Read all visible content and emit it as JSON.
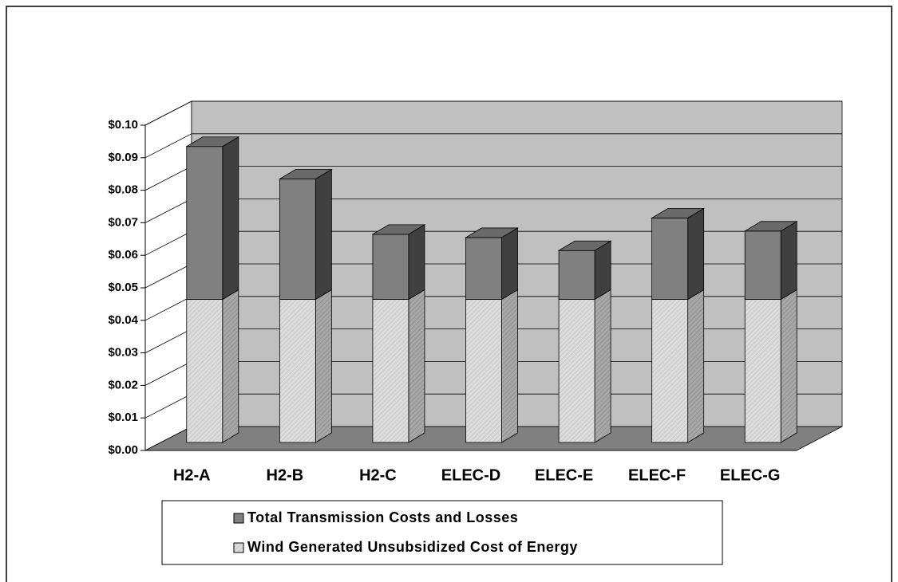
{
  "chart_data": {
    "type": "bar3d-stacked",
    "categories": [
      "H2-A",
      "H2-B",
      "H2-C",
      "ELEC-D",
      "ELEC-E",
      "ELEC-F",
      "ELEC-G"
    ],
    "series": [
      {
        "name": "Total Transmission Costs and Losses",
        "color": "#808080",
        "values": [
          0.047,
          0.037,
          0.02,
          0.019,
          0.015,
          0.025,
          0.021
        ]
      },
      {
        "name": "Wind Generated Unsubsidized Cost of Energy",
        "color": "#d9d9d9",
        "values": [
          0.044,
          0.044,
          0.044,
          0.044,
          0.044,
          0.044,
          0.044
        ]
      }
    ],
    "ylim": [
      0,
      0.1
    ],
    "yticks": [
      {
        "value": 0,
        "label": "$0.00"
      },
      {
        "value": 0.01,
        "label": "$0.01"
      },
      {
        "value": 0.02,
        "label": "$0.02"
      },
      {
        "value": 0.03,
        "label": "$0.03"
      },
      {
        "value": 0.04,
        "label": "$0.04"
      },
      {
        "value": 0.05,
        "label": "$0.05"
      },
      {
        "value": 0.06,
        "label": "$0.06"
      },
      {
        "value": 0.07,
        "label": "$0.07"
      },
      {
        "value": 0.08,
        "label": "$0.08"
      },
      {
        "value": 0.09,
        "label": "$0.09"
      },
      {
        "value": 0.1,
        "label": "$0.10"
      }
    ],
    "grid": true
  }
}
